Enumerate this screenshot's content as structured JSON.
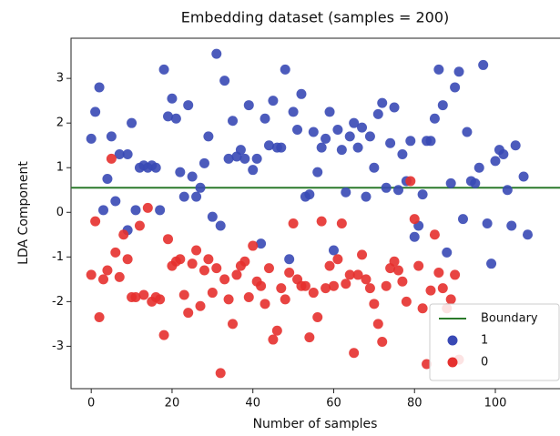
{
  "chart_data": {
    "type": "scatter",
    "title": "Embedding dataset (samples = 200)",
    "x_label": "Number of samples",
    "y_label": "LDA Component",
    "xlim": [
      -5,
      116
    ],
    "ylim": [
      -3.95,
      3.9
    ],
    "xticks": [
      0,
      20,
      40,
      60,
      80,
      100
    ],
    "yticks": [
      -3,
      -2,
      -1,
      0,
      1,
      2,
      3
    ],
    "lines": [
      {
        "name": "Boundary",
        "y": 0.55,
        "color": "#2b7a2b"
      }
    ],
    "series": [
      {
        "name": "1",
        "color": "#3949b5",
        "x": [
          0,
          1,
          2,
          3,
          4,
          5,
          6,
          7,
          9,
          9,
          10,
          11,
          12,
          13,
          14,
          15,
          16,
          17,
          18,
          19,
          20,
          21,
          22,
          23,
          24,
          25,
          26,
          27,
          28,
          29,
          30,
          31,
          32,
          33,
          34,
          35,
          36,
          37,
          38,
          39,
          40,
          41,
          42,
          43,
          44,
          45,
          46,
          47,
          48,
          49,
          50,
          51,
          52,
          53,
          54,
          55,
          56,
          57,
          58,
          59,
          60,
          61,
          62,
          63,
          64,
          65,
          66,
          67,
          68,
          69,
          70,
          71,
          72,
          73,
          74,
          75,
          76,
          77,
          78,
          79,
          80,
          81,
          82,
          83,
          84,
          85,
          86,
          87,
          88,
          89,
          90,
          91,
          92,
          93,
          94,
          95,
          96,
          97,
          98,
          99,
          100,
          101,
          102,
          103,
          104,
          105,
          107,
          108
        ],
        "values": [
          1.65,
          2.25,
          2.8,
          0.05,
          0.75,
          1.7,
          0.25,
          1.3,
          1.3,
          -0.4,
          2.0,
          0.05,
          1.0,
          1.05,
          1.0,
          1.05,
          1.0,
          0.05,
          3.2,
          2.15,
          2.55,
          2.1,
          0.9,
          0.35,
          2.4,
          0.8,
          0.35,
          0.55,
          1.1,
          1.7,
          -0.1,
          3.55,
          -0.3,
          2.95,
          1.2,
          2.05,
          1.25,
          1.4,
          1.2,
          2.4,
          0.95,
          1.2,
          -0.7,
          2.1,
          1.5,
          2.5,
          1.45,
          1.45,
          3.2,
          -1.05,
          2.25,
          1.85,
          2.65,
          0.35,
          0.4,
          1.8,
          0.9,
          1.45,
          1.65,
          2.25,
          -0.85,
          1.85,
          1.4,
          0.45,
          1.7,
          2.0,
          1.45,
          1.9,
          0.35,
          1.7,
          1.0,
          2.2,
          2.45,
          0.55,
          1.55,
          2.35,
          0.5,
          1.3,
          0.7,
          1.6,
          -0.55,
          -0.3,
          0.4,
          1.6,
          1.6,
          2.1,
          3.2,
          2.4,
          -0.9,
          0.65,
          2.8,
          3.15,
          -0.15,
          1.8,
          0.7,
          0.65,
          1.0,
          3.3,
          -0.25,
          -1.15,
          1.15,
          1.4,
          1.3,
          0.5,
          -0.3,
          1.5,
          0.8,
          -0.5
        ]
      },
      {
        "name": "0",
        "color": "#e5302e",
        "x": [
          0,
          1,
          2,
          3,
          4,
          5,
          6,
          7,
          8,
          9,
          10,
          11,
          12,
          13,
          14,
          15,
          16,
          17,
          18,
          19,
          20,
          21,
          22,
          23,
          24,
          25,
          26,
          27,
          28,
          29,
          30,
          31,
          32,
          33,
          34,
          35,
          36,
          37,
          38,
          39,
          40,
          41,
          42,
          43,
          44,
          45,
          46,
          47,
          48,
          49,
          50,
          51,
          52,
          53,
          54,
          55,
          56,
          57,
          58,
          59,
          60,
          61,
          62,
          63,
          64,
          65,
          66,
          67,
          68,
          69,
          70,
          71,
          72,
          73,
          74,
          75,
          76,
          77,
          78,
          79,
          80,
          81,
          82,
          83,
          84,
          85,
          86,
          87,
          88,
          89,
          90,
          91
        ],
        "values": [
          -1.4,
          -0.2,
          -2.35,
          -1.5,
          -1.3,
          1.2,
          -0.9,
          -1.45,
          -0.5,
          -1.05,
          -1.9,
          -1.9,
          -0.3,
          -1.85,
          0.1,
          -2.0,
          -1.9,
          -1.95,
          -2.75,
          -0.6,
          -1.2,
          -1.1,
          -1.05,
          -1.85,
          -2.25,
          -1.15,
          -0.85,
          -2.1,
          -1.3,
          -1.05,
          -1.8,
          -1.25,
          -3.6,
          -1.5,
          -1.95,
          -2.5,
          -1.4,
          -1.2,
          -1.1,
          -1.9,
          -0.75,
          -1.55,
          -1.65,
          -2.05,
          -1.25,
          -2.85,
          -2.65,
          -1.7,
          -1.95,
          -1.35,
          -0.25,
          -1.5,
          -1.65,
          -1.65,
          -2.8,
          -1.8,
          -2.35,
          -0.2,
          -1.7,
          -1.2,
          -1.65,
          -1.05,
          -0.25,
          -1.6,
          -1.4,
          -3.15,
          -1.4,
          -0.95,
          -1.5,
          -1.7,
          -2.05,
          -2.5,
          -2.9,
          -1.65,
          -1.25,
          -1.1,
          -1.3,
          -1.55,
          -2.0,
          0.7,
          -0.15,
          -1.2,
          -2.15,
          -3.4,
          -1.75,
          -0.5,
          -1.35,
          -1.7,
          -2.15,
          -1.95,
          -1.4,
          -3.3
        ]
      }
    ]
  }
}
